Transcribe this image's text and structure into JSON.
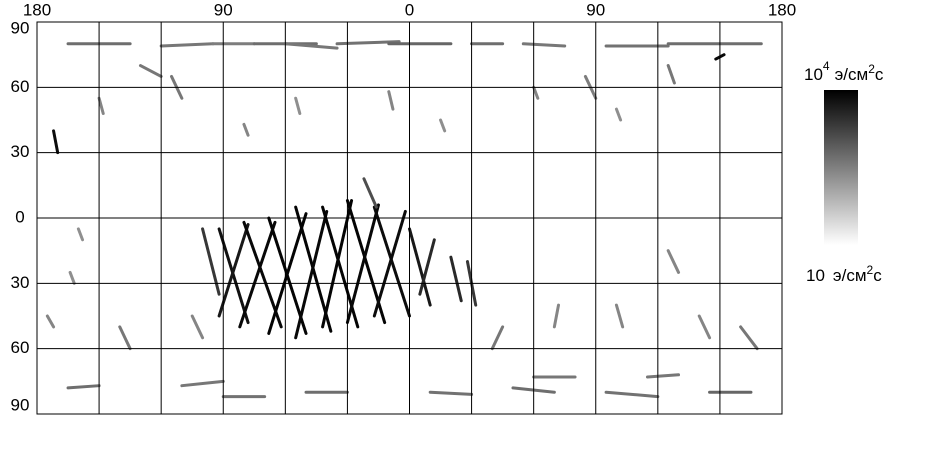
{
  "chart_data": {
    "type": "track-map",
    "xlim": [
      -180,
      180
    ],
    "xticks": [
      {
        "value": -180,
        "label": "180"
      },
      {
        "value": -90,
        "label": "90"
      },
      0,
      90,
      180
    ],
    "xgrid": [
      -150,
      -120,
      -60,
      -30,
      30,
      60,
      120,
      150
    ],
    "ylim": [
      -90,
      90
    ],
    "yticks": [
      90,
      60,
      30,
      0,
      {
        "value": -30,
        "label": "30"
      },
      {
        "value": -60,
        "label": "60"
      },
      {
        "value": -90,
        "label": "90"
      }
    ],
    "grid": true,
    "colorbar": {
      "min": 10,
      "max": 10000,
      "log": true,
      "max_label": "10",
      "max_exp": "4",
      "min_label": "10",
      "unit": "э/см",
      "unit_exp": "2",
      "unit_end": "с"
    },
    "tracks": [
      {
        "lon": [
          -92,
          -78
        ],
        "lat": [
          -5,
          -48
        ],
        "value": 6000
      },
      {
        "lon": [
          -78,
          -92
        ],
        "lat": [
          -3,
          -45
        ],
        "value": 5000
      },
      {
        "lon": [
          -80,
          -62
        ],
        "lat": [
          -2,
          -50
        ],
        "value": 8000
      },
      {
        "lon": [
          -65,
          -82
        ],
        "lat": [
          -2,
          -50
        ],
        "value": 8000
      },
      {
        "lon": [
          -68,
          -50
        ],
        "lat": [
          0,
          -53
        ],
        "value": 9000
      },
      {
        "lon": [
          -50,
          -68
        ],
        "lat": [
          2,
          -53
        ],
        "value": 9000
      },
      {
        "lon": [
          -55,
          -38
        ],
        "lat": [
          5,
          -52
        ],
        "value": 9000
      },
      {
        "lon": [
          -40,
          -55
        ],
        "lat": [
          3,
          -55
        ],
        "value": 8000
      },
      {
        "lon": [
          -42,
          -25
        ],
        "lat": [
          5,
          -50
        ],
        "value": 9000
      },
      {
        "lon": [
          -28,
          -42
        ],
        "lat": [
          8,
          -50
        ],
        "value": 9000
      },
      {
        "lon": [
          -30,
          -12
        ],
        "lat": [
          8,
          -48
        ],
        "value": 9000
      },
      {
        "lon": [
          -15,
          -30
        ],
        "lat": [
          6,
          -48
        ],
        "value": 8000
      },
      {
        "lon": [
          -17,
          0
        ],
        "lat": [
          5,
          -45
        ],
        "value": 7000
      },
      {
        "lon": [
          -2,
          -17
        ],
        "lat": [
          3,
          -45
        ],
        "value": 7000
      },
      {
        "lon": [
          0,
          10
        ],
        "lat": [
          -5,
          -40
        ],
        "value": 5000
      },
      {
        "lon": [
          12,
          5
        ],
        "lat": [
          -10,
          -35
        ],
        "value": 3000
      },
      {
        "lon": [
          20,
          25
        ],
        "lat": [
          -18,
          -38
        ],
        "value": 3000
      },
      {
        "lon": [
          28,
          32
        ],
        "lat": [
          -20,
          -40
        ],
        "value": 2000
      },
      {
        "lon": [
          -100,
          -92
        ],
        "lat": [
          -5,
          -35
        ],
        "value": 2000
      },
      {
        "lon": [
          -22,
          -16
        ],
        "lat": [
          18,
          5
        ],
        "value": 1000
      },
      {
        "lon": [
          -165,
          -135
        ],
        "lat": [
          80,
          80
        ],
        "value": 400
      },
      {
        "lon": [
          -120,
          -95
        ],
        "lat": [
          79,
          80
        ],
        "value": 300
      },
      {
        "lon": [
          -95,
          -75
        ],
        "lat": [
          80,
          80
        ],
        "value": 250
      },
      {
        "lon": [
          -75,
          -45
        ],
        "lat": [
          80,
          80
        ],
        "value": 400
      },
      {
        "lon": [
          -60,
          -35
        ],
        "lat": [
          80,
          78
        ],
        "value": 300
      },
      {
        "lon": [
          -35,
          -5
        ],
        "lat": [
          80,
          81
        ],
        "value": 350
      },
      {
        "lon": [
          -10,
          20
        ],
        "lat": [
          80,
          80
        ],
        "value": 500
      },
      {
        "lon": [
          30,
          45
        ],
        "lat": [
          80,
          80
        ],
        "value": 400
      },
      {
        "lon": [
          55,
          75
        ],
        "lat": [
          80,
          79
        ],
        "value": 300
      },
      {
        "lon": [
          95,
          125
        ],
        "lat": [
          79,
          79
        ],
        "value": 350
      },
      {
        "lon": [
          125,
          170
        ],
        "lat": [
          80,
          80
        ],
        "value": 400
      },
      {
        "lon": [
          148,
          152
        ],
        "lat": [
          73,
          75
        ],
        "value": 8000
      },
      {
        "lon": [
          -150,
          -148
        ],
        "lat": [
          55,
          48
        ],
        "value": 200
      },
      {
        "lon": [
          -115,
          -110
        ],
        "lat": [
          65,
          55
        ],
        "value": 300
      },
      {
        "lon": [
          -80,
          -78
        ],
        "lat": [
          43,
          38
        ],
        "value": 200
      },
      {
        "lon": [
          -55,
          -53
        ],
        "lat": [
          55,
          48
        ],
        "value": 150
      },
      {
        "lon": [
          -10,
          -8
        ],
        "lat": [
          58,
          50
        ],
        "value": 200
      },
      {
        "lon": [
          15,
          17
        ],
        "lat": [
          45,
          40
        ],
        "value": 150
      },
      {
        "lon": [
          60,
          62
        ],
        "lat": [
          60,
          55
        ],
        "value": 200
      },
      {
        "lon": [
          85,
          90
        ],
        "lat": [
          65,
          55
        ],
        "value": 250
      },
      {
        "lon": [
          100,
          102
        ],
        "lat": [
          50,
          45
        ],
        "value": 150
      },
      {
        "lon": [
          125,
          128
        ],
        "lat": [
          70,
          62
        ],
        "value": 300
      },
      {
        "lon": [
          -172,
          -170
        ],
        "lat": [
          40,
          30
        ],
        "value": 7000
      },
      {
        "lon": [
          -130,
          -120
        ],
        "lat": [
          70,
          65
        ],
        "value": 300
      },
      {
        "lon": [
          -165,
          -150
        ],
        "lat": [
          -78,
          -77
        ],
        "value": 400
      },
      {
        "lon": [
          -110,
          -90
        ],
        "lat": [
          -77,
          -75
        ],
        "value": 300
      },
      {
        "lon": [
          -90,
          -70
        ],
        "lat": [
          -82,
          -82
        ],
        "value": 350
      },
      {
        "lon": [
          -50,
          -30
        ],
        "lat": [
          -80,
          -80
        ],
        "value": 400
      },
      {
        "lon": [
          10,
          30
        ],
        "lat": [
          -80,
          -81
        ],
        "value": 350
      },
      {
        "lon": [
          50,
          70
        ],
        "lat": [
          -78,
          -80
        ],
        "value": 400
      },
      {
        "lon": [
          60,
          80
        ],
        "lat": [
          -73,
          -73
        ],
        "value": 300
      },
      {
        "lon": [
          95,
          120
        ],
        "lat": [
          -80,
          -82
        ],
        "value": 350
      },
      {
        "lon": [
          145,
          165
        ],
        "lat": [
          -80,
          -80
        ],
        "value": 500
      },
      {
        "lon": [
          115,
          130
        ],
        "lat": [
          -73,
          -72
        ],
        "value": 300
      },
      {
        "lon": [
          -175,
          -172
        ],
        "lat": [
          -45,
          -50
        ],
        "value": 200
      },
      {
        "lon": [
          -140,
          -135
        ],
        "lat": [
          -50,
          -60
        ],
        "value": 300
      },
      {
        "lon": [
          -105,
          -100
        ],
        "lat": [
          -45,
          -55
        ],
        "value": 200
      },
      {
        "lon": [
          40,
          45
        ],
        "lat": [
          -60,
          -50
        ],
        "value": 300
      },
      {
        "lon": [
          70,
          72
        ],
        "lat": [
          -50,
          -40
        ],
        "value": 200
      },
      {
        "lon": [
          100,
          103
        ],
        "lat": [
          -40,
          -50
        ],
        "value": 200
      },
      {
        "lon": [
          125,
          130
        ],
        "lat": [
          -15,
          -25
        ],
        "value": 200
      },
      {
        "lon": [
          160,
          168
        ],
        "lat": [
          -50,
          -60
        ],
        "value": 300
      },
      {
        "lon": [
          -160,
          -158
        ],
        "lat": [
          -5,
          -10
        ],
        "value": 150
      },
      {
        "lon": [
          -162,
          -164
        ],
        "lat": [
          -30,
          -25
        ],
        "value": 150
      },
      {
        "lon": [
          140,
          145
        ],
        "lat": [
          -45,
          -55
        ],
        "value": 200
      }
    ]
  }
}
